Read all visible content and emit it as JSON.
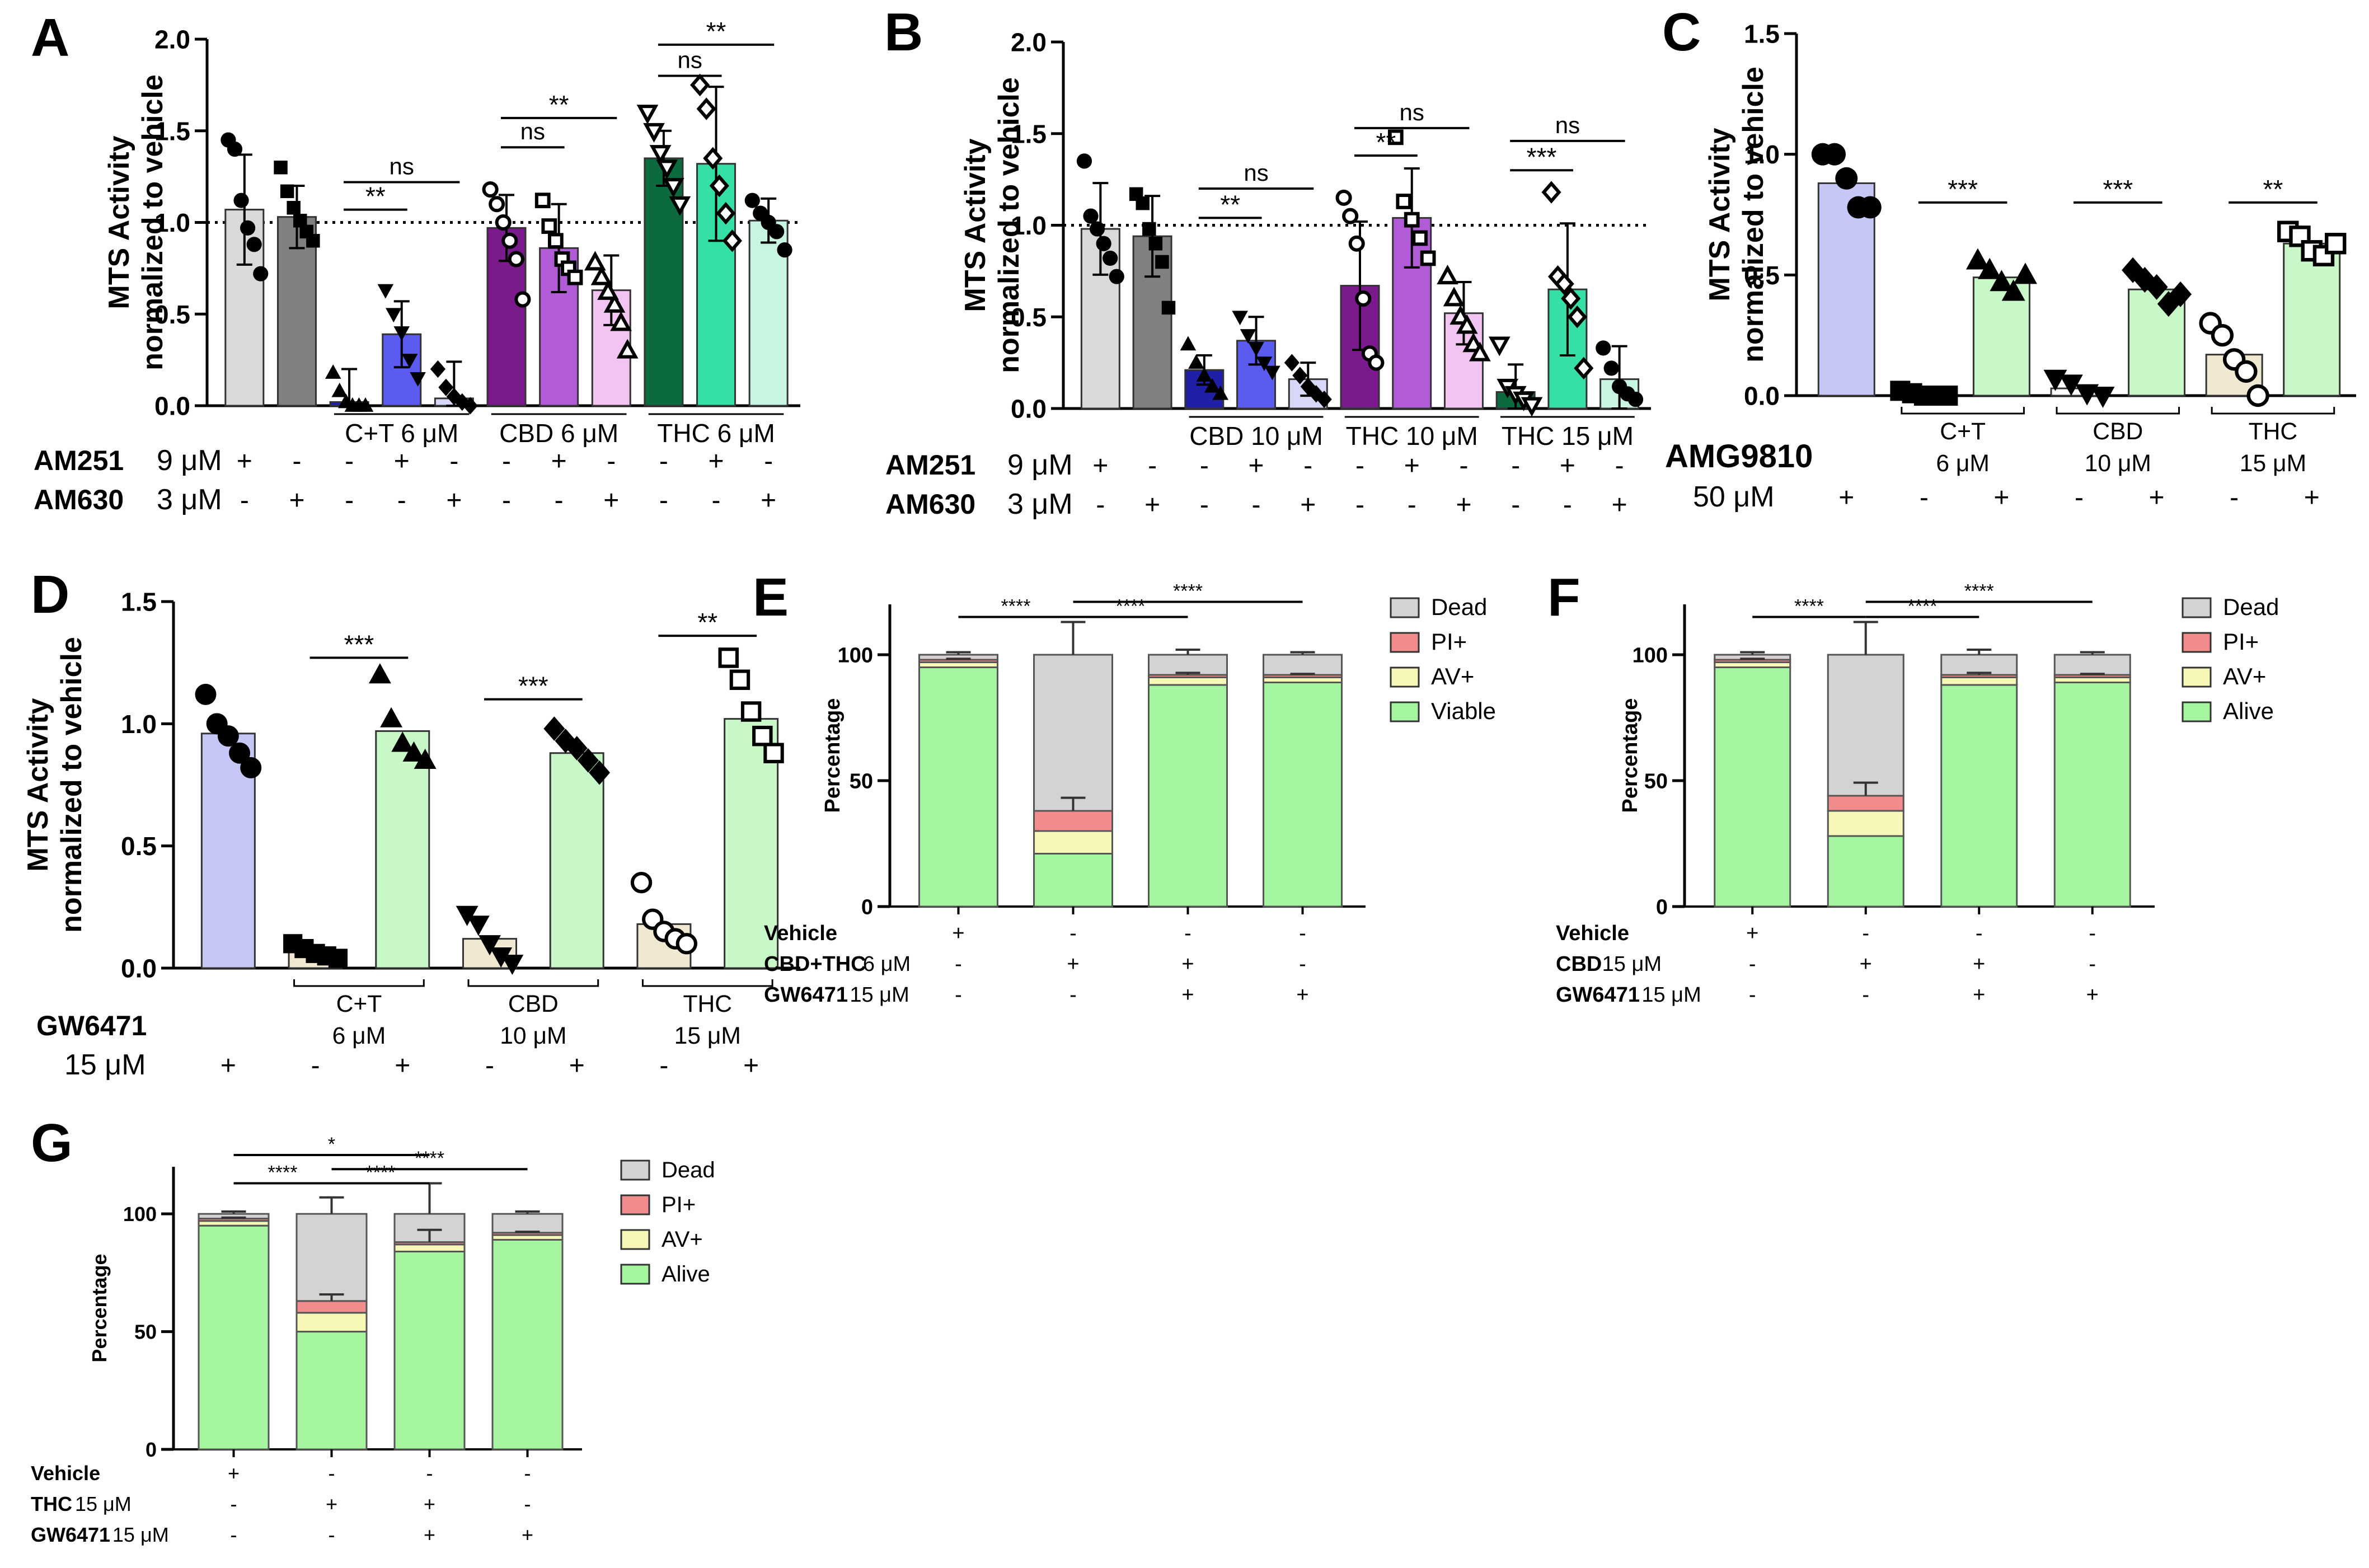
{
  "chart_data": [
    {
      "panel": "A",
      "type": "bar",
      "ylabel": [
        "MTS Activity",
        "normalized to vehicle"
      ],
      "ylim": [
        0,
        2
      ],
      "yticks": [
        "0.0",
        "0.5",
        "1.0",
        "1.5",
        "2.0"
      ],
      "refline": 1.0,
      "categories": [
        "AM251",
        "AM630",
        "C+T",
        "C+T+AM251",
        "C+T+AM630",
        "CBD",
        "CBD+AM251",
        "CBD+AM630",
        "THC",
        "THC+AM251",
        "THC+AM630"
      ],
      "values": [
        1.07,
        1.03,
        0.02,
        0.39,
        0.04,
        0.97,
        0.86,
        0.63,
        1.35,
        1.32,
        1.01
      ],
      "errors": [
        0.3,
        0.17,
        0.18,
        0.18,
        0.2,
        0.18,
        0.24,
        0.19,
        0.15,
        0.42,
        0.12
      ],
      "colors": [
        "#d9d9d9",
        "#808080",
        "#1f1fa8",
        "#5b5bf2",
        "#d7d7f7",
        "#7a1a8c",
        "#b15cd6",
        "#f2c4f2",
        "#0b6b3e",
        "#35e0a8",
        "#c8f5e2"
      ],
      "markers": [
        "circle",
        "square",
        "triangle",
        "triangle-down",
        "diamond",
        "circle-open",
        "square-open",
        "triangle-open",
        "triangle-down-open",
        "diamond-open",
        "circle"
      ],
      "points": [
        [
          1.45,
          1.4,
          1.12,
          0.97,
          0.88,
          0.72
        ],
        [
          1.3,
          1.17,
          1.08,
          1.01,
          0.95,
          0.9
        ],
        [
          0.18,
          0.08,
          0.02,
          0.0,
          0.0,
          0.0
        ],
        [
          0.63,
          0.5,
          0.4,
          0.25,
          0.15
        ],
        [
          0.2,
          0.1,
          0.05,
          0.02,
          0.0
        ],
        [
          1.18,
          1.1,
          1.0,
          0.9,
          0.8,
          0.58
        ],
        [
          1.12,
          0.98,
          0.9,
          0.8,
          0.75,
          0.7
        ],
        [
          0.78,
          0.7,
          0.62,
          0.55,
          0.45,
          0.3
        ],
        [
          1.6,
          1.5,
          1.38,
          1.3,
          1.2,
          1.1
        ],
        [
          1.75,
          1.62,
          1.35,
          1.2,
          1.05,
          0.9
        ],
        [
          1.12,
          1.05,
          1.0,
          0.95,
          0.85
        ]
      ],
      "groups": [
        {
          "label": "C+T 6 μM",
          "from": 2,
          "to": 4
        },
        {
          "label": "CBD 6 μM",
          "from": 5,
          "to": 7
        },
        {
          "label": "THC 6 μM",
          "from": 8,
          "to": 10
        }
      ],
      "sig": [
        {
          "from": 2,
          "to": 3,
          "text": "**",
          "y": 1.07
        },
        {
          "from": 2,
          "to": 4,
          "text": "ns",
          "y": 1.22
        },
        {
          "from": 5,
          "to": 6,
          "text": "ns",
          "y": 1.41
        },
        {
          "from": 5,
          "to": 7,
          "text": "**",
          "y": 1.57
        },
        {
          "from": 8,
          "to": 9,
          "text": "ns",
          "y": 1.8
        },
        {
          "from": 8,
          "to": 10,
          "text": "**",
          "y": 1.97
        }
      ],
      "treatments": [
        {
          "bold": "AM251",
          "unit": "9 μM",
          "signs": [
            "+",
            "-",
            "-",
            "+",
            "-",
            "-",
            "+",
            "-",
            "-",
            "+",
            "-"
          ]
        },
        {
          "bold": "AM630",
          "unit": "3 μM",
          "signs": [
            "-",
            "+",
            "-",
            "-",
            "+",
            "-",
            "-",
            "+",
            "-",
            "-",
            "+"
          ]
        }
      ]
    },
    {
      "panel": "B",
      "type": "bar",
      "ylabel": [
        "MTS Activity",
        "normalized to vehicle"
      ],
      "ylim": [
        0,
        2
      ],
      "yticks": [
        "0.0",
        "0.5",
        "1.0",
        "1.5",
        "2.0"
      ],
      "refline": 1.0,
      "categories": [
        "AM251",
        "AM630",
        "CBD",
        "CBD+AM251",
        "CBD+AM630",
        "THC",
        "THC+AM251",
        "THC+AM630",
        "THC15",
        "THC15+AM251",
        "THC15+AM630"
      ],
      "values": [
        0.98,
        0.94,
        0.21,
        0.37,
        0.16,
        0.67,
        1.04,
        0.52,
        0.09,
        0.65,
        0.16
      ],
      "errors": [
        0.25,
        0.22,
        0.08,
        0.13,
        0.09,
        0.35,
        0.27,
        0.17,
        0.15,
        0.36,
        0.18
      ],
      "colors": [
        "#d9d9d9",
        "#808080",
        "#1f1fa8",
        "#5b5bf2",
        "#d7d7f7",
        "#7a1a8c",
        "#b15cd6",
        "#f2c4f2",
        "#0b6b3e",
        "#35e0a8",
        "#c8f5e2"
      ],
      "markers": [
        "circle",
        "square",
        "triangle",
        "triangle-down",
        "diamond",
        "circle-open",
        "square-open",
        "triangle-open",
        "triangle-down-open",
        "diamond-open",
        "circle"
      ],
      "points": [
        [
          1.35,
          1.05,
          0.98,
          0.9,
          0.82,
          0.72
        ],
        [
          1.17,
          1.12,
          0.98,
          0.9,
          0.8,
          0.55
        ],
        [
          0.35,
          0.25,
          0.18,
          0.12,
          0.08
        ],
        [
          0.5,
          0.4,
          0.33,
          0.25,
          0.2
        ],
        [
          0.25,
          0.18,
          0.12,
          0.08,
          0.05
        ],
        [
          1.15,
          1.05,
          0.9,
          0.6,
          0.3,
          0.25
        ],
        [
          1.48,
          1.13,
          1.03,
          0.93,
          0.82
        ],
        [
          0.72,
          0.6,
          0.5,
          0.45,
          0.35,
          0.3
        ],
        [
          0.35,
          0.12,
          0.08,
          0.05,
          0.02
        ],
        [
          1.18,
          0.72,
          0.68,
          0.6,
          0.5,
          0.22
        ],
        [
          0.33,
          0.22,
          0.12,
          0.08,
          0.05
        ]
      ],
      "groups": [
        {
          "label": "CBD 10 μM",
          "from": 2,
          "to": 4
        },
        {
          "label": "THC 10 μM",
          "from": 5,
          "to": 7
        },
        {
          "label": "THC 15 μM",
          "from": 8,
          "to": 10
        }
      ],
      "sig": [
        {
          "from": 2,
          "to": 3,
          "text": "**",
          "y": 1.04
        },
        {
          "from": 2,
          "to": 4,
          "text": "ns",
          "y": 1.2
        },
        {
          "from": 5,
          "to": 6,
          "text": "**",
          "y": 1.38
        },
        {
          "from": 5,
          "to": 7,
          "text": "ns",
          "y": 1.53
        },
        {
          "from": 8,
          "to": 9,
          "text": "***",
          "y": 1.3
        },
        {
          "from": 8,
          "to": 10,
          "text": "ns",
          "y": 1.46
        }
      ],
      "treatments": [
        {
          "bold": "AM251",
          "unit": "9 μM",
          "signs": [
            "+",
            "-",
            "-",
            "+",
            "-",
            "-",
            "+",
            "-",
            "-",
            "+",
            "-"
          ]
        },
        {
          "bold": "AM630",
          "unit": "3 μM",
          "signs": [
            "-",
            "+",
            "-",
            "-",
            "+",
            "-",
            "-",
            "+",
            "-",
            "-",
            "+"
          ]
        }
      ]
    },
    {
      "panel": "C",
      "type": "bar",
      "ylabel": [
        "MTS Activity",
        "normalized to vehicle"
      ],
      "ylim": [
        0,
        1.5
      ],
      "yticks": [
        "0.0",
        "0.5",
        "1.0",
        "1.5"
      ],
      "categories": [
        "AMG9810",
        "C+T",
        "C+T+AMG9810",
        "CBD",
        "CBD+AMG9810",
        "THC",
        "THC+AMG9810"
      ],
      "values": [
        0.88,
        0.01,
        0.49,
        0.03,
        0.44,
        0.17,
        0.63
      ],
      "colors": [
        "#c6c6f7",
        "#c8c8c8",
        "#c8f7c8",
        "#ffffff",
        "#c8f7c8",
        "#f0e8d0",
        "#c8f7c8"
      ],
      "markers": [
        "circle",
        "square",
        "triangle",
        "triangle-down",
        "diamond",
        "circle-open",
        "square-open"
      ],
      "points": [
        [
          1.0,
          1.0,
          0.9,
          0.78,
          0.78
        ],
        [
          0.02,
          0.01,
          0.0,
          0.0,
          0.0
        ],
        [
          0.56,
          0.52,
          0.47,
          0.43,
          0.5
        ],
        [
          0.07,
          0.05,
          0.01,
          0.0
        ],
        [
          0.52,
          0.48,
          0.45,
          0.38,
          0.42
        ],
        [
          0.3,
          0.25,
          0.15,
          0.1,
          0.0
        ],
        [
          0.68,
          0.66,
          0.6,
          0.58,
          0.63
        ]
      ],
      "groups": [
        {
          "label": "C+T",
          "label2": "6 μM",
          "from": 1,
          "to": 2
        },
        {
          "label": "CBD",
          "label2": "10 μM",
          "from": 3,
          "to": 4
        },
        {
          "label": "THC",
          "label2": "15 μM",
          "from": 5,
          "to": 6
        }
      ],
      "sig": [
        {
          "from": 1,
          "to": 2,
          "text": "***",
          "y": 0.8
        },
        {
          "from": 3,
          "to": 4,
          "text": "***",
          "y": 0.8
        },
        {
          "from": 5,
          "to": 6,
          "text": "**",
          "y": 0.8
        }
      ],
      "treatments": [
        {
          "bold": "AMG9810",
          "unit": "",
          "signs": []
        },
        {
          "bold": "",
          "unit": "50 μM",
          "signs": [
            "+",
            "-",
            "+",
            "-",
            "+",
            "-",
            "+"
          ]
        }
      ]
    },
    {
      "panel": "D",
      "type": "bar",
      "ylabel": [
        "MTS Activity",
        "normalized to vehicle"
      ],
      "ylim": [
        0,
        1.5
      ],
      "yticks": [
        "0.0",
        "0.5",
        "1.0",
        "1.5"
      ],
      "categories": [
        "GW6471",
        "C+T",
        "C+T+GW6471",
        "CBD",
        "CBD+GW6471",
        "THC",
        "THC+GW6471"
      ],
      "values": [
        0.96,
        0.07,
        0.97,
        0.12,
        0.88,
        0.18,
        1.02
      ],
      "colors": [
        "#c6c6f7",
        "#f0e8d0",
        "#c8f7c8",
        "#f0e8d0",
        "#c8f7c8",
        "#f0e8d0",
        "#c8f7c8"
      ],
      "markers": [
        "circle",
        "square",
        "triangle",
        "triangle-down",
        "diamond",
        "circle-open",
        "square-open"
      ],
      "points": [
        [
          1.12,
          1.0,
          0.95,
          0.88,
          0.82
        ],
        [
          0.1,
          0.08,
          0.06,
          0.05,
          0.04
        ],
        [
          1.2,
          1.02,
          0.92,
          0.88,
          0.85
        ],
        [
          0.22,
          0.18,
          0.1,
          0.05,
          0.02
        ],
        [
          0.98,
          0.93,
          0.9,
          0.85,
          0.8
        ],
        [
          0.35,
          0.2,
          0.15,
          0.12,
          0.1
        ],
        [
          1.27,
          1.18,
          1.05,
          0.95,
          0.88
        ]
      ],
      "groups": [
        {
          "label": "C+T",
          "label2": "6 μM",
          "from": 1,
          "to": 2
        },
        {
          "label": "CBD",
          "label2": "10 μM",
          "from": 3,
          "to": 4
        },
        {
          "label": "THC",
          "label2": "15 μM",
          "from": 5,
          "to": 6
        }
      ],
      "sig": [
        {
          "from": 1,
          "to": 2,
          "text": "***",
          "y": 1.27
        },
        {
          "from": 3,
          "to": 4,
          "text": "***",
          "y": 1.1
        },
        {
          "from": 5,
          "to": 6,
          "text": "**",
          "y": 1.36
        }
      ],
      "treatments": [
        {
          "bold": "GW6471",
          "unit": "",
          "signs": []
        },
        {
          "bold": "",
          "unit": "15 μM",
          "signs": [
            "+",
            "-",
            "+",
            "-",
            "+",
            "-",
            "+"
          ]
        }
      ]
    },
    {
      "panel": "E",
      "type": "stacked-bar",
      "ylabel": [
        "Percentage"
      ],
      "ylim": [
        0,
        120
      ],
      "yticks": [
        "0",
        "50",
        "100"
      ],
      "legend": [
        "Dead",
        "PI+",
        "AV+",
        "Viable"
      ],
      "colors": {
        "Dead": "#d3d3d3",
        "PI+": "#f28b8b",
        "AV+": "#f7f7b8",
        "Viable": "#a5f5a0"
      },
      "series": [
        {
          "name": "Viable",
          "values": [
            95,
            21,
            88,
            89
          ]
        },
        {
          "name": "AV+",
          "values": [
            2,
            9,
            3,
            2
          ]
        },
        {
          "name": "PI+",
          "values": [
            1,
            8,
            1,
            1
          ]
        },
        {
          "name": "Dead",
          "values": [
            2,
            62,
            8,
            8
          ]
        }
      ],
      "errors": [
        1,
        13,
        2,
        1
      ],
      "sig": [
        {
          "from": 0,
          "to": 1,
          "text": "****",
          "y": 115
        },
        {
          "from": 1,
          "to": 2,
          "text": "****",
          "y": 115
        },
        {
          "from": 1,
          "to": 3,
          "text": "****",
          "y": 121
        }
      ],
      "treatments": [
        {
          "bold": "Vehicle",
          "unit": "",
          "signs": [
            "+",
            "-",
            "-",
            "-"
          ]
        },
        {
          "bold": "CBD+THC",
          "unit": "6 μM",
          "signs": [
            "-",
            "+",
            "+",
            "-"
          ]
        },
        {
          "bold": "GW6471",
          "unit": "15 μM",
          "signs": [
            "-",
            "-",
            "+",
            "+"
          ]
        }
      ]
    },
    {
      "panel": "F",
      "type": "stacked-bar",
      "ylabel": [
        "Percentage"
      ],
      "ylim": [
        0,
        120
      ],
      "yticks": [
        "0",
        "50",
        "100"
      ],
      "legend": [
        "Dead",
        "PI+",
        "AV+",
        "Alive"
      ],
      "colors": {
        "Dead": "#d3d3d3",
        "PI+": "#f28b8b",
        "AV+": "#f7f7b8",
        "Alive": "#a5f5a0"
      },
      "series": [
        {
          "name": "Alive",
          "values": [
            95,
            28,
            88,
            89
          ]
        },
        {
          "name": "AV+",
          "values": [
            2,
            10,
            3,
            2
          ]
        },
        {
          "name": "PI+",
          "values": [
            1,
            6,
            1,
            1
          ]
        },
        {
          "name": "Dead",
          "values": [
            2,
            56,
            8,
            8
          ]
        }
      ],
      "errors": [
        1,
        13,
        2,
        1
      ],
      "sig": [
        {
          "from": 0,
          "to": 1,
          "text": "****",
          "y": 115
        },
        {
          "from": 1,
          "to": 2,
          "text": "****",
          "y": 115
        },
        {
          "from": 1,
          "to": 3,
          "text": "****",
          "y": 121
        }
      ],
      "treatments": [
        {
          "bold": "Vehicle",
          "unit": "",
          "signs": [
            "+",
            "-",
            "-",
            "-"
          ]
        },
        {
          "bold": "CBD",
          "unit": "15 μM",
          "signs": [
            "-",
            "+",
            "+",
            "-"
          ]
        },
        {
          "bold": "GW6471",
          "unit": "15 μM",
          "signs": [
            "-",
            "-",
            "+",
            "+"
          ]
        }
      ]
    },
    {
      "panel": "G",
      "type": "stacked-bar",
      "ylabel": [
        "Percentage"
      ],
      "ylim": [
        0,
        120
      ],
      "yticks": [
        "0",
        "50",
        "100"
      ],
      "legend": [
        "Dead",
        "PI+",
        "AV+",
        "Alive"
      ],
      "colors": {
        "Dead": "#d3d3d3",
        "PI+": "#f28b8b",
        "AV+": "#f7f7b8",
        "Alive": "#a5f5a0"
      },
      "series": [
        {
          "name": "Alive",
          "values": [
            95,
            50,
            84,
            89
          ]
        },
        {
          "name": "AV+",
          "values": [
            2,
            8,
            3,
            2
          ]
        },
        {
          "name": "PI+",
          "values": [
            1,
            5,
            1,
            1
          ]
        },
        {
          "name": "Dead",
          "values": [
            2,
            37,
            12,
            8
          ]
        }
      ],
      "errors": [
        1,
        7,
        13,
        1
      ],
      "sig": [
        {
          "from": 0,
          "to": 1,
          "text": "****",
          "y": 113
        },
        {
          "from": 1,
          "to": 2,
          "text": "****",
          "y": 113
        },
        {
          "from": 1,
          "to": 3,
          "text": "****",
          "y": 119
        },
        {
          "from": 0,
          "to": 2,
          "text": "*",
          "y": 125
        }
      ],
      "treatments": [
        {
          "bold": "Vehicle",
          "unit": "",
          "signs": [
            "+",
            "-",
            "-",
            "-"
          ]
        },
        {
          "bold": "THC",
          "unit": "15 μM",
          "signs": [
            "-",
            "+",
            "+",
            "-"
          ]
        },
        {
          "bold": "GW6471",
          "unit": "15 μM",
          "signs": [
            "-",
            "-",
            "+",
            "+"
          ]
        }
      ]
    }
  ]
}
